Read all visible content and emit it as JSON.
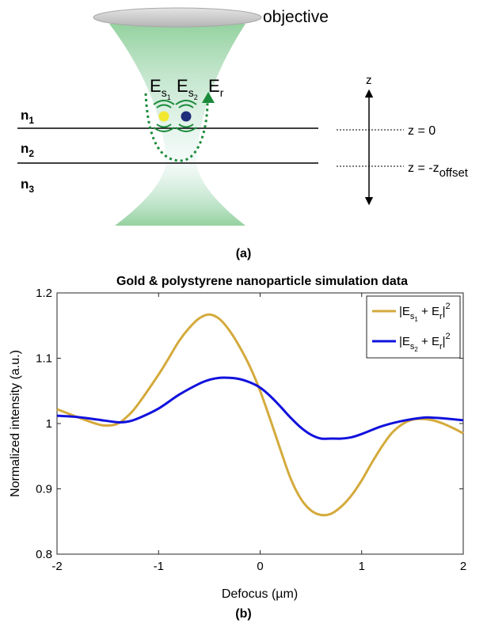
{
  "figure_a": {
    "caption": "(a)",
    "objective_label": "objective",
    "layer_labels": {
      "n1": "n",
      "n1_sub": "1",
      "n2": "n",
      "n2_sub": "2",
      "n3": "n",
      "n3_sub": "3"
    },
    "field_labels": {
      "es1": "E",
      "es1_sub": "s",
      "es1_subsub": "1",
      "es2": "E",
      "es2_sub": "s",
      "es2_subsub": "2",
      "er": "E",
      "er_sub": "r"
    },
    "axis_label": "z",
    "z0_label": "z = 0",
    "zoffset_label_main": "z = -z",
    "zoffset_label_sub": "offset",
    "colors": {
      "beam": "#8fcf9a",
      "particle1": "#f2e830",
      "particle2": "#1f2d7a",
      "path": "#1a8a3a",
      "lens": "#c9c9c9"
    }
  },
  "figure_b": {
    "caption": "(b)"
  },
  "chart_data": {
    "type": "line",
    "title": "Gold & polystyrene nanoparticle simulation data",
    "xlabel": "Defocus (µm)",
    "ylabel": "Normalized intensity (a.u.)",
    "xlim": [
      -2,
      2
    ],
    "ylim": [
      0.8,
      1.2
    ],
    "xticks": [
      "-2",
      "-1",
      "0",
      "1",
      "2"
    ],
    "yticks": [
      "0.8",
      "0.9",
      "1",
      "1.1",
      "1.2"
    ],
    "grid": false,
    "legend_position": "top-right",
    "legend": [
      {
        "main": "|E",
        "sub": "s",
        "subsub": "1",
        "mid": " + E",
        "sub2": "r",
        "end": "|",
        "sup": "2"
      },
      {
        "main": "|E",
        "sub": "s",
        "subsub": "2",
        "mid": " + E",
        "sub2": "r",
        "end": "|",
        "sup": "2"
      }
    ],
    "series": [
      {
        "color": "#d4aa3c",
        "x": [
          -2.0,
          -1.8,
          -1.6,
          -1.5,
          -1.4,
          -1.3,
          -1.2,
          -1.0,
          -0.9,
          -0.8,
          -0.7,
          -0.6,
          -0.5,
          -0.4,
          -0.3,
          -0.2,
          -0.1,
          0.0,
          0.1,
          0.2,
          0.3,
          0.4,
          0.5,
          0.6,
          0.7,
          0.8,
          0.9,
          1.0,
          1.1,
          1.2,
          1.3,
          1.4,
          1.5,
          1.6,
          1.7,
          1.8,
          1.9,
          2.0
        ],
        "y": [
          1.022,
          1.01,
          0.999,
          0.997,
          1.0,
          1.012,
          1.03,
          1.075,
          1.1,
          1.126,
          1.146,
          1.161,
          1.167,
          1.16,
          1.142,
          1.117,
          1.087,
          1.05,
          1.006,
          0.96,
          0.916,
          0.885,
          0.867,
          0.86,
          0.862,
          0.873,
          0.89,
          0.913,
          0.94,
          0.965,
          0.986,
          0.999,
          1.006,
          1.007,
          1.005,
          1.0,
          0.993,
          0.985
        ]
      },
      {
        "color": "#1111dd",
        "x": [
          -2.0,
          -1.8,
          -1.6,
          -1.4,
          -1.3,
          -1.2,
          -1.0,
          -0.8,
          -0.6,
          -0.5,
          -0.4,
          -0.3,
          -0.2,
          -0.1,
          0.0,
          0.1,
          0.2,
          0.3,
          0.4,
          0.5,
          0.6,
          0.7,
          0.8,
          0.9,
          1.0,
          1.2,
          1.4,
          1.6,
          1.7,
          1.8,
          2.0
        ],
        "y": [
          1.012,
          1.01,
          1.006,
          1.002,
          1.003,
          1.008,
          1.023,
          1.044,
          1.061,
          1.067,
          1.07,
          1.07,
          1.068,
          1.063,
          1.055,
          1.042,
          1.026,
          1.009,
          0.994,
          0.983,
          0.977,
          0.977,
          0.977,
          0.979,
          0.984,
          0.996,
          1.004,
          1.009,
          1.009,
          1.008,
          1.005
        ]
      }
    ]
  }
}
